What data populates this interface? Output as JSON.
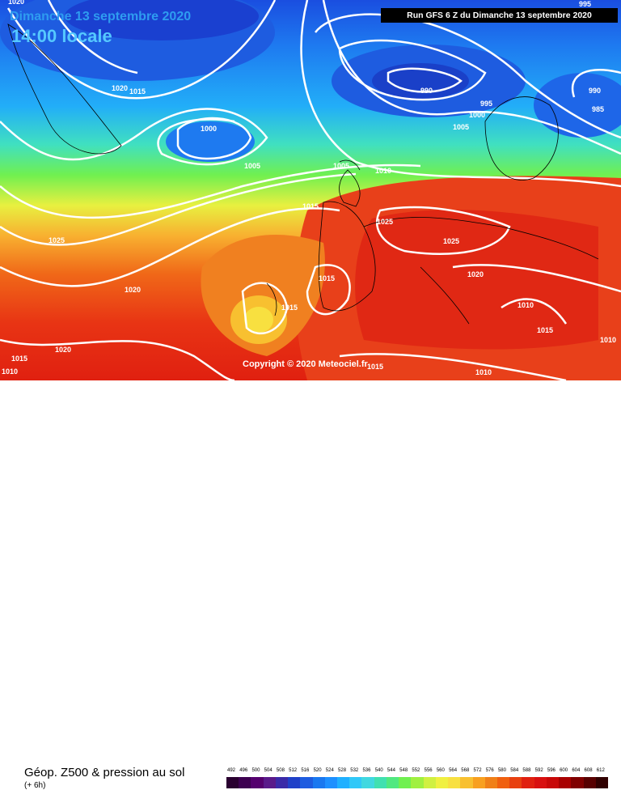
{
  "header": {
    "date_text": "Dimanche 13 septembre 2020",
    "time_text": "14:00 locale",
    "run_text": "Run GFS 6 Z du Dimanche 13 septembre 2020"
  },
  "map": {
    "copyright": "Copyright © 2020 Meteociel.fr",
    "isobar_labels": [
      "1020",
      "1015",
      "1020",
      "1000",
      "990",
      "995",
      "1000",
      "1005",
      "990",
      "985",
      "1005",
      "1005",
      "1010",
      "1015",
      "1025",
      "1025",
      "1025",
      "1020",
      "1015",
      "1015",
      "1020",
      "1015",
      "1020",
      "1015",
      "1010",
      "1010",
      "1015",
      "1010",
      "1010",
      "995"
    ]
  },
  "footer": {
    "title": "Géop. Z500 & pression au sol",
    "subtitle": "(+ 6h)"
  },
  "legend": {
    "values": [
      "492",
      "496",
      "500",
      "504",
      "508",
      "512",
      "516",
      "520",
      "524",
      "528",
      "532",
      "536",
      "540",
      "544",
      "548",
      "552",
      "556",
      "560",
      "564",
      "568",
      "572",
      "576",
      "580",
      "584",
      "588",
      "592",
      "596",
      "600",
      "604",
      "608",
      "612"
    ],
    "colors": [
      "#2a0030",
      "#3d0050",
      "#55006e",
      "#5a1a8a",
      "#3a2aa8",
      "#2040c8",
      "#1e5ce0",
      "#1a78f0",
      "#1e90ff",
      "#20b0ff",
      "#30c8f8",
      "#40d8e0",
      "#40e0b0",
      "#50e880",
      "#70f050",
      "#a0f040",
      "#d0f040",
      "#f0f040",
      "#f8e040",
      "#f8c030",
      "#f8a020",
      "#f08018",
      "#f06010",
      "#e84010",
      "#e02010",
      "#d81010",
      "#c80808",
      "#a80000",
      "#800000",
      "#580000",
      "#300000"
    ]
  }
}
